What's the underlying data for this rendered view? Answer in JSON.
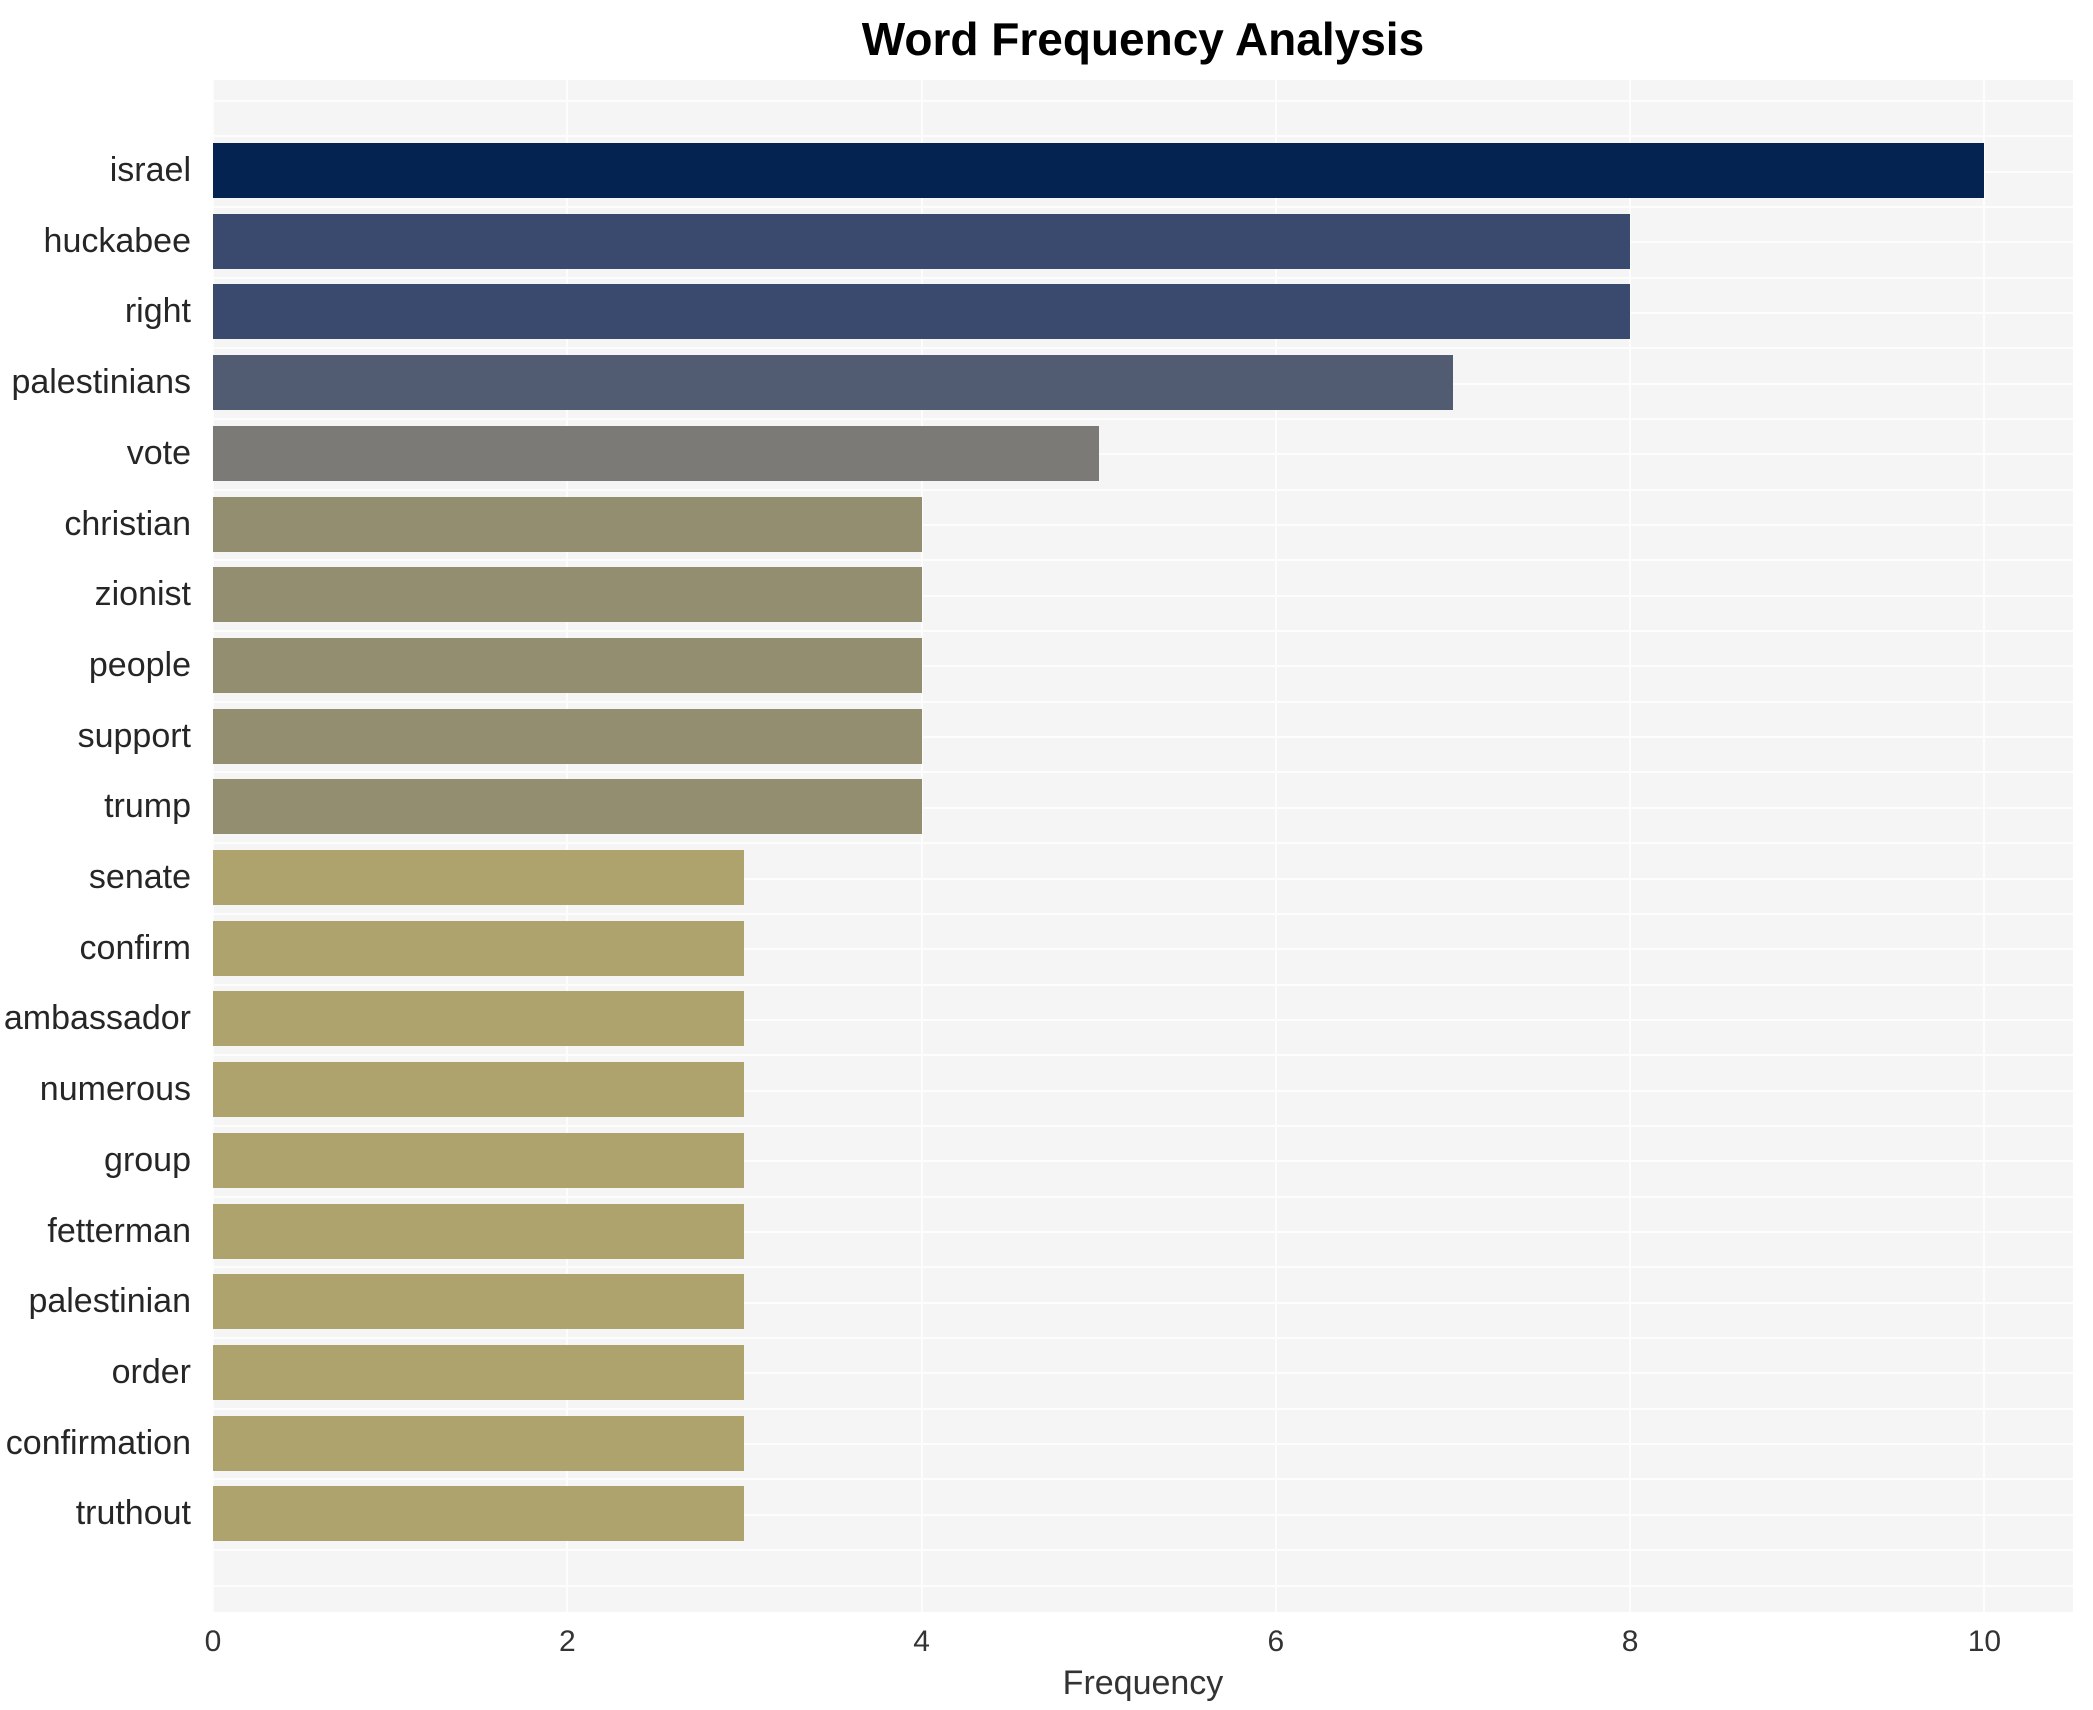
{
  "chart_data": {
    "type": "bar",
    "orientation": "horizontal",
    "title": "Word Frequency Analysis",
    "xlabel": "Frequency",
    "ylabel": "",
    "xlim": [
      0,
      10.5
    ],
    "xticks": [
      0,
      2,
      4,
      6,
      8,
      10
    ],
    "grid": true,
    "legend": false,
    "plot_background": "#f5f5f6",
    "grid_color": "#fdfdfe",
    "categories": [
      "israel",
      "huckabee",
      "right",
      "palestinians",
      "vote",
      "christian",
      "zionist",
      "people",
      "support",
      "trump",
      "senate",
      "confirm",
      "ambassador",
      "numerous",
      "group",
      "fetterman",
      "palestinian",
      "order",
      "confirmation",
      "truthout"
    ],
    "values": [
      10,
      8,
      8,
      7,
      5,
      4,
      4,
      4,
      4,
      4,
      3,
      3,
      3,
      3,
      3,
      3,
      3,
      3,
      3,
      3
    ],
    "bar_colors": [
      "#042351",
      "#394a6e",
      "#394a6e",
      "#515b72",
      "#7b7a76",
      "#948e71",
      "#948e71",
      "#948e71",
      "#948e71",
      "#948e71",
      "#aea26d",
      "#aea26d",
      "#aea26d",
      "#aea26d",
      "#aea26d",
      "#aea26d",
      "#aea26d",
      "#aea26d",
      "#aea26d",
      "#aea26d"
    ]
  }
}
